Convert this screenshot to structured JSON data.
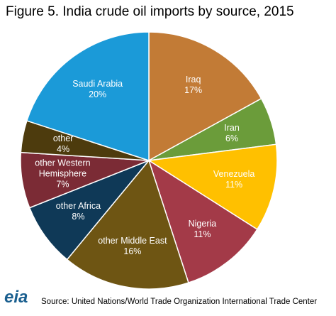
{
  "chart_data": {
    "type": "pie",
    "title": "Figure 5. India crude oil imports by source, 2015",
    "categories": [
      "Iraq",
      "Iran",
      "Venezuela",
      "Nigeria",
      "other Middle East",
      "other Africa",
      "other Western Hemisphere",
      "other",
      "Saudi Arabia"
    ],
    "values": [
      17,
      6,
      11,
      11,
      16,
      8,
      7,
      4,
      20
    ],
    "value_labels": [
      "17%",
      "6%",
      "11%",
      "11%",
      "16%",
      "8%",
      "7%",
      "4%",
      "20%"
    ],
    "colors": [
      "#c27b36",
      "#6b9c3a",
      "#ffc000",
      "#a33a48",
      "#6e5513",
      "#0f3957",
      "#7b2b35",
      "#4d3b0d",
      "#1b9ad8"
    ],
    "source": "Source: United Nations/World Trade Organization International Trade Center",
    "logo": "eia"
  }
}
